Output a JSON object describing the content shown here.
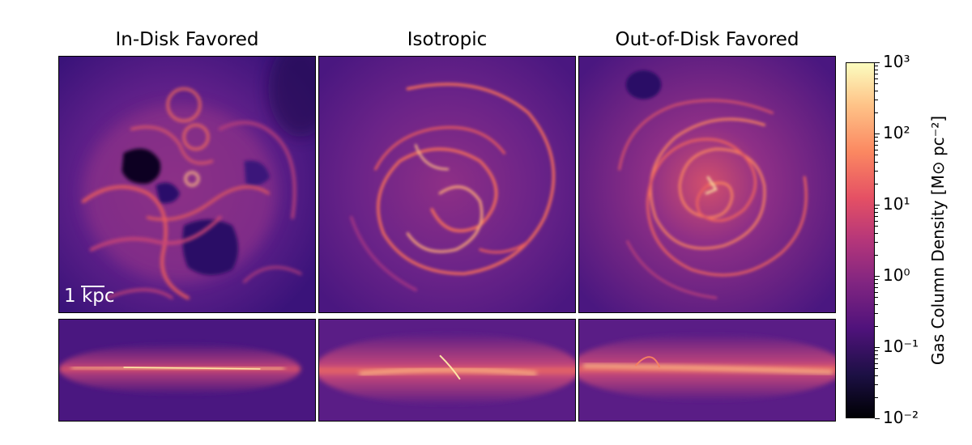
{
  "titles": {
    "left": "In-Disk Favored",
    "center": "Isotropic",
    "right": "Out-of-Disk Favored"
  },
  "scale_bar": {
    "label": "1 kpc"
  },
  "colorbar": {
    "label": "Gas Column Density [M⊙ pc⁻²]",
    "colormap": "magma",
    "scale": "log",
    "range": [
      0.01,
      1000
    ],
    "tick_labels": [
      "10⁻²",
      "10⁻¹",
      "10⁰",
      "10¹",
      "10²",
      "10³"
    ]
  },
  "panels": [
    {
      "name": "in-disk-face-on",
      "view": "face-on"
    },
    {
      "name": "isotropic-face-on",
      "view": "face-on"
    },
    {
      "name": "out-of-disk-face-on",
      "view": "face-on"
    },
    {
      "name": "in-disk-edge-on",
      "view": "edge-on"
    },
    {
      "name": "isotropic-edge-on",
      "view": "edge-on"
    },
    {
      "name": "out-of-disk-edge-on",
      "view": "edge-on"
    }
  ],
  "colors": {
    "background_low": "#3a137a",
    "mid": "#7a2a8a",
    "bright": "#f56b5c",
    "peak": "#fde6a6",
    "void": "#0c0620"
  }
}
